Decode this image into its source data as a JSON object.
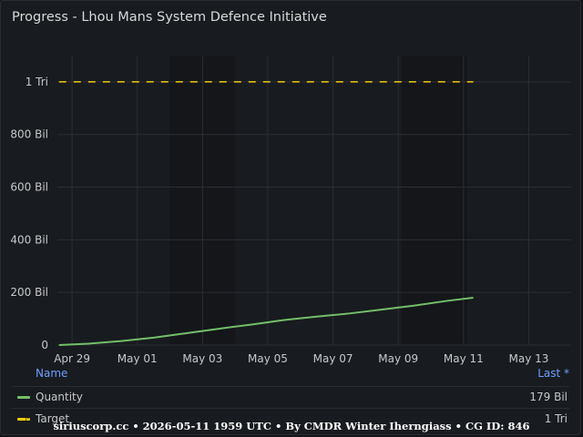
{
  "panel": {
    "title": "Progress - Lhou Mans System Defence Initiative"
  },
  "colors": {
    "background": "#181b1f",
    "grid": "#2b2e34",
    "quantity": "#73bf69",
    "target": "#f2cc0c",
    "legend_header": "#6e9fff"
  },
  "legend": {
    "name_header": "Name",
    "last_header": "Last *",
    "items": [
      {
        "name": "Quantity",
        "value": "179 Bil",
        "style": "solid",
        "color": "#73bf69"
      },
      {
        "name": "Target",
        "value": "1 Tri",
        "style": "dashed",
        "color": "#f2cc0c"
      }
    ]
  },
  "footer": {
    "text": "siriuscorp.cc • 2026-05-11 1959 UTC • By CMDR Winter Iherngiass • CG ID: 846"
  },
  "chart_data": {
    "type": "line",
    "x_tick_labels": [
      "Apr 29",
      "May 01",
      "May 03",
      "May 05",
      "May 07",
      "May 09",
      "May 11",
      "May 13"
    ],
    "x_tick_days": [
      0,
      2,
      4,
      6,
      8,
      10,
      12,
      14
    ],
    "xlim_days": [
      -0.45,
      15.3
    ],
    "y_tick_labels": [
      "0",
      "200 Bil",
      "400 Bil",
      "600 Bil",
      "800 Bil",
      "1 Tri"
    ],
    "y_tick_values": [
      0,
      200,
      400,
      600,
      800,
      1000
    ],
    "ylim": [
      0,
      1100
    ],
    "y_unit": "Bil",
    "shaded_ranges_days": [
      [
        3,
        5
      ],
      [
        10.1,
        12.1
      ]
    ],
    "series": [
      {
        "name": "Quantity",
        "style": "solid",
        "x_days": [
          -0.4,
          0.5,
          1.5,
          2.5,
          3.5,
          4.5,
          5.5,
          6.5,
          7.5,
          8.5,
          9.5,
          10.5,
          11.5,
          12.3
        ],
        "values": [
          0,
          5,
          15,
          28,
          45,
          62,
          78,
          95,
          108,
          120,
          135,
          150,
          168,
          180
        ]
      },
      {
        "name": "Target",
        "style": "dashed",
        "x_days": [
          -0.4,
          12.3
        ],
        "values": [
          1000,
          1000
        ]
      }
    ]
  }
}
